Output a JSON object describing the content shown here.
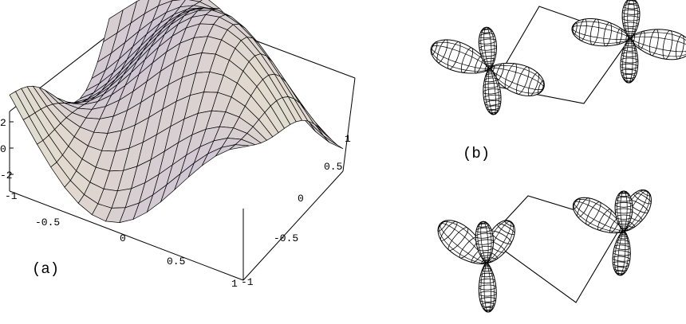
{
  "panel_a": {
    "label": "(a)",
    "z_ticks": [
      "2",
      "0",
      "-2"
    ],
    "x_ticks": [
      "-1",
      "-0.5",
      "0",
      "0.5",
      "1"
    ],
    "y_ticks": [
      "-1",
      "-0.5",
      "0",
      "0.5",
      "1"
    ],
    "surface_colors": [
      "#6a72c4",
      "#8b86c9",
      "#a9a8d6",
      "#cfc6d4",
      "#e2d9cf",
      "#d8ecd8",
      "#bfe3e6",
      "#5a8ad8"
    ]
  },
  "panel_b": {
    "label": "(b)"
  },
  "panel_c": {
    "label": ""
  }
}
